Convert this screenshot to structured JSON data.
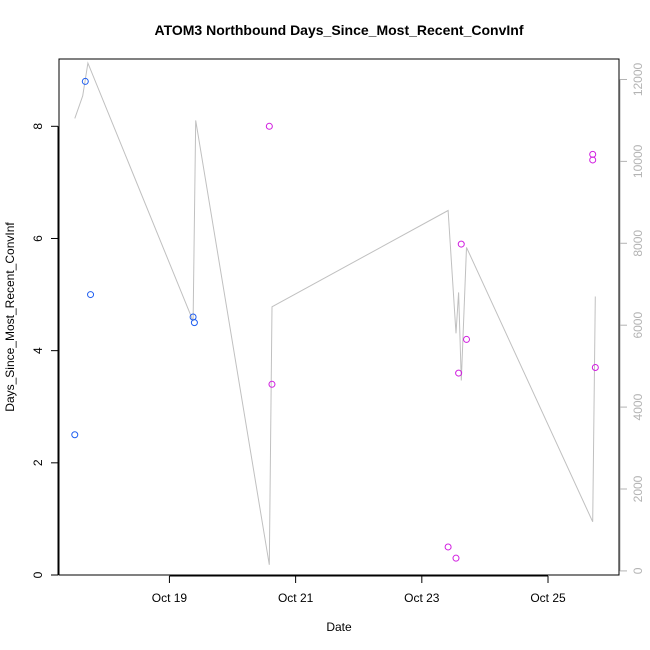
{
  "chart_data": {
    "type": "scatter",
    "title": "ATOM3 Northbound Days_Since_Most_Recent_ConvInf",
    "xlabel": "Date",
    "ylabel": "Days_Since_Most_Recent_ConvInf",
    "xlim": [
      "2023-10-17 06:00",
      "2023-10-26 03:00"
    ],
    "ylim": [
      0,
      9.2
    ],
    "y2lim": [
      -100,
      12500
    ],
    "x_ticks": [
      {
        "value": "2023-10-19",
        "label": "Oct 19"
      },
      {
        "value": "2023-10-21",
        "label": "Oct 21"
      },
      {
        "value": "2023-10-23",
        "label": "Oct 23"
      },
      {
        "value": "2023-10-25",
        "label": "Oct 25"
      }
    ],
    "y_ticks": [
      0,
      2,
      4,
      6,
      8
    ],
    "y2_ticks": [
      0,
      2000,
      4000,
      6000,
      8000,
      10000,
      12000
    ],
    "grid": false,
    "series": [
      {
        "color": "#1f5ef0",
        "marker": "open-circle",
        "points": [
          {
            "x": "2023-10-17 12:00",
            "y": 2.5
          },
          {
            "x": "2023-10-17 16:00",
            "y": 8.8
          },
          {
            "x": "2023-10-17 18:00",
            "y": 5.0
          },
          {
            "x": "2023-10-19 09:00",
            "y": 4.6
          },
          {
            "x": "2023-10-19 09:30",
            "y": 4.5
          }
        ]
      },
      {
        "color": "#d11ee0",
        "marker": "open-circle",
        "points": [
          {
            "x": "2023-10-20 14:00",
            "y": 8.0
          },
          {
            "x": "2023-10-20 15:00",
            "y": 3.4
          },
          {
            "x": "2023-10-23 10:00",
            "y": 0.5
          },
          {
            "x": "2023-10-23 13:00",
            "y": 0.3
          },
          {
            "x": "2023-10-23 14:00",
            "y": 3.6
          },
          {
            "x": "2023-10-23 15:00",
            "y": 5.9
          },
          {
            "x": "2023-10-23 17:00",
            "y": 4.2
          },
          {
            "x": "2023-10-25 17:00",
            "y": 7.5
          },
          {
            "x": "2023-10-25 17:00",
            "y": 7.4
          },
          {
            "x": "2023-10-25 18:00",
            "y": 3.7
          }
        ]
      },
      {
        "color": "#c0c0c0",
        "axis": "right",
        "style": "line",
        "points": [
          {
            "x": "2023-10-17 12:00",
            "y": 11050
          },
          {
            "x": "2023-10-17 15:00",
            "y": 11600
          },
          {
            "x": "2023-10-17 17:00",
            "y": 12400
          },
          {
            "x": "2023-10-19 09:00",
            "y": 6100
          },
          {
            "x": "2023-10-19 10:00",
            "y": 11000
          },
          {
            "x": "2023-10-20 14:00",
            "y": 150
          },
          {
            "x": "2023-10-20 15:00",
            "y": 6450
          },
          {
            "x": "2023-10-23 10:00",
            "y": 8800
          },
          {
            "x": "2023-10-23 13:00",
            "y": 5800
          },
          {
            "x": "2023-10-23 14:00",
            "y": 6800
          },
          {
            "x": "2023-10-23 15:00",
            "y": 4650
          },
          {
            "x": "2023-10-23 17:00",
            "y": 7900
          },
          {
            "x": "2023-10-25 17:00",
            "y": 1200
          },
          {
            "x": "2023-10-25 18:00",
            "y": 6700
          }
        ]
      }
    ]
  }
}
